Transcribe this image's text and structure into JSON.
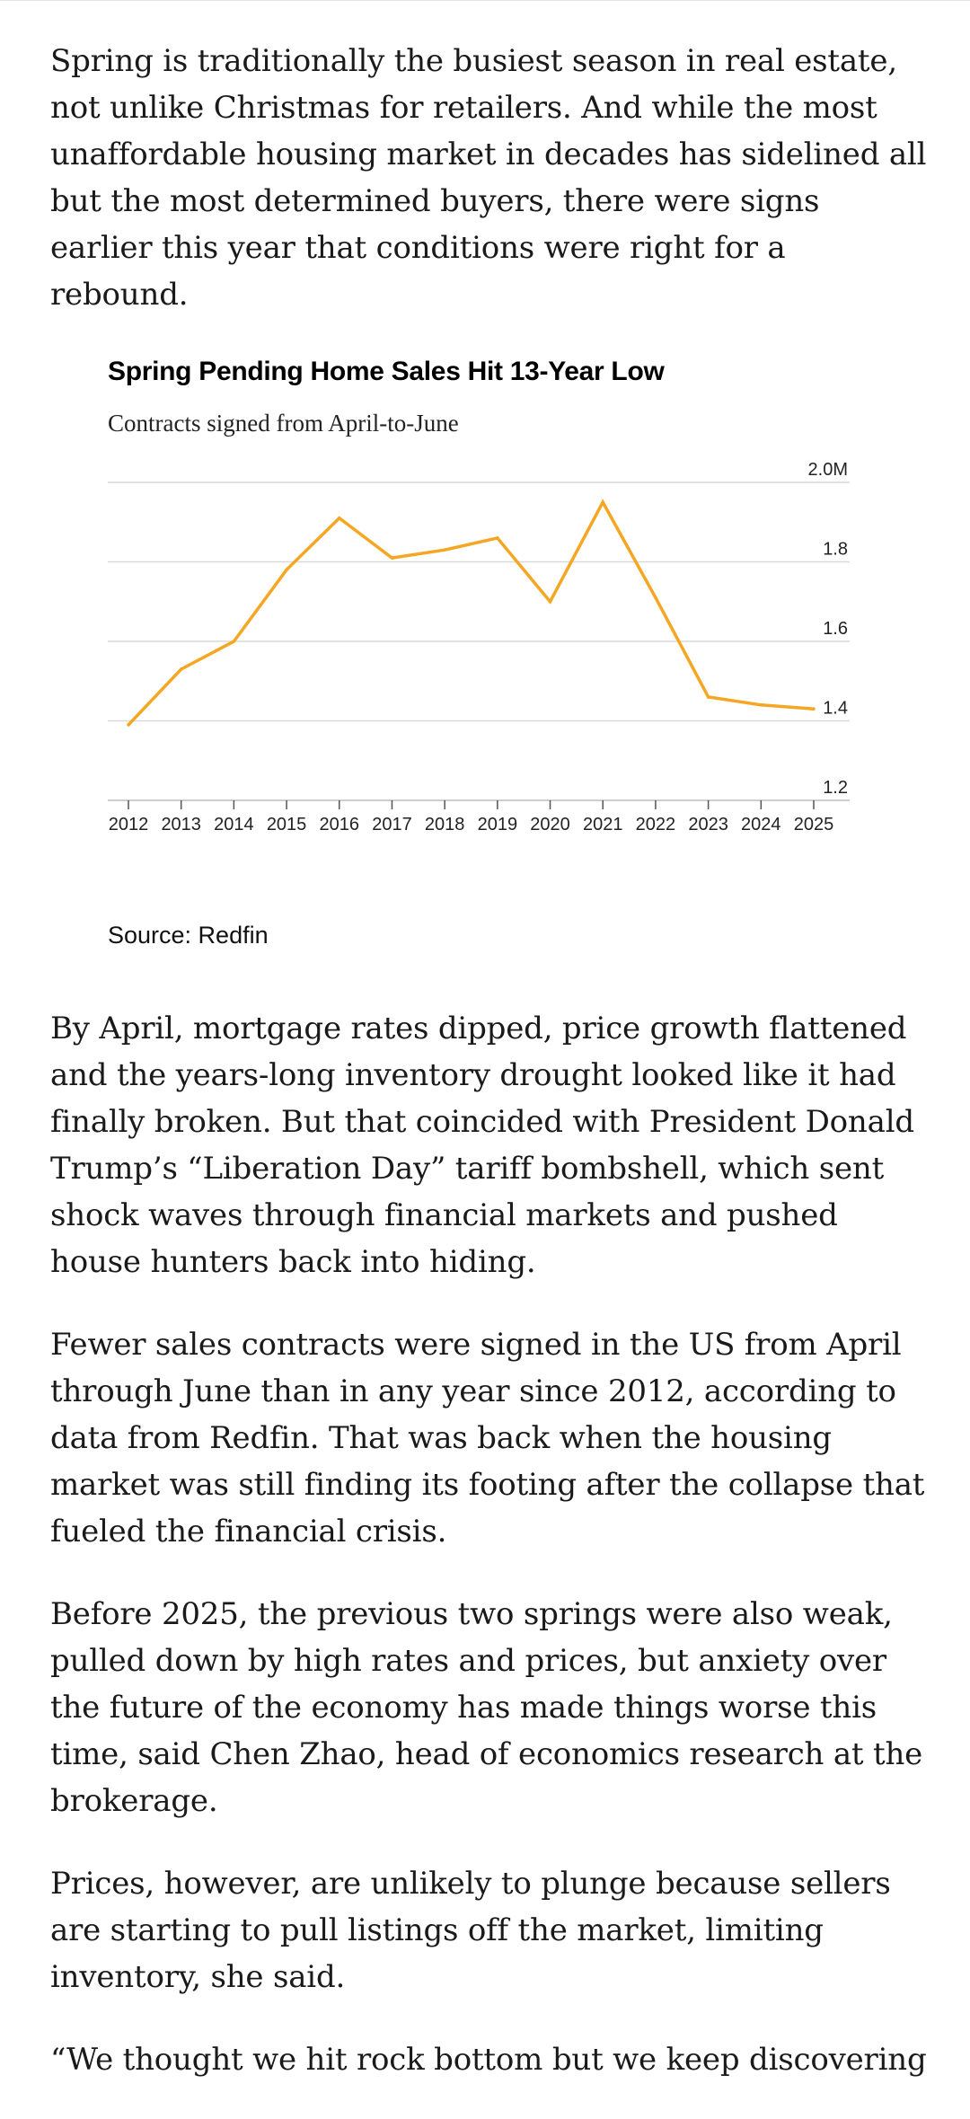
{
  "article": {
    "paragraphs_before": [
      "Spring is traditionally the busiest season in real estate, not unlike Christmas for retailers. And while the most unaffordable housing market in decades has sidelined all but the most determined buyers, there were signs earlier this year that conditions were right for a rebound."
    ],
    "paragraphs_after": [
      "By April, mortgage rates dipped, price growth flattened and the years-long inventory drought looked like it had finally broken. But that coincided with President Donald Trump’s “Liberation Day” tariff bombshell, which sent shock waves through financial markets and pushed house hunters back into hiding.",
      "Fewer sales contracts were signed in the US from April through June than in any year since 2012, according to data from Redfin. That was back when the housing market was still finding its footing after the collapse that fueled the financial crisis.",
      "Before 2025, the previous two springs were also weak, pulled down by high rates and prices, but anxiety over the future of the economy has made things worse this time, said Chen Zhao, head of economics research at the brokerage.",
      "Prices, however, are unlikely to plunge because sellers are starting to pull listings off the market, limiting inventory, she said.",
      "“We thought we hit rock bottom but we keep discovering"
    ]
  },
  "chart_data": {
    "type": "line",
    "title": "Spring Pending Home Sales Hit 13-Year Low",
    "subtitle": "Contracts signed from April-to-June",
    "source": "Source: Redfin",
    "x": [
      "2012",
      "2013",
      "2014",
      "2015",
      "2016",
      "2017",
      "2018",
      "2019",
      "2020",
      "2021",
      "2022",
      "2023",
      "2024",
      "2025"
    ],
    "series": [
      {
        "values": [
          1.39,
          1.53,
          1.6,
          1.78,
          1.91,
          1.81,
          1.83,
          1.86,
          1.7,
          1.95,
          1.71,
          1.46,
          1.44,
          1.43
        ],
        "color": "#F5A623"
      }
    ],
    "y_ticks": [
      {
        "value": 2.0,
        "label": "2.0M"
      },
      {
        "value": 1.8,
        "label": "1.8"
      },
      {
        "value": 1.6,
        "label": "1.6"
      },
      {
        "value": 1.4,
        "label": "1.4"
      },
      {
        "value": 1.2,
        "label": "1.2"
      }
    ],
    "ylim": [
      1.2,
      2.0
    ],
    "y_axis_position": "right",
    "grid": true,
    "legend": "none"
  }
}
